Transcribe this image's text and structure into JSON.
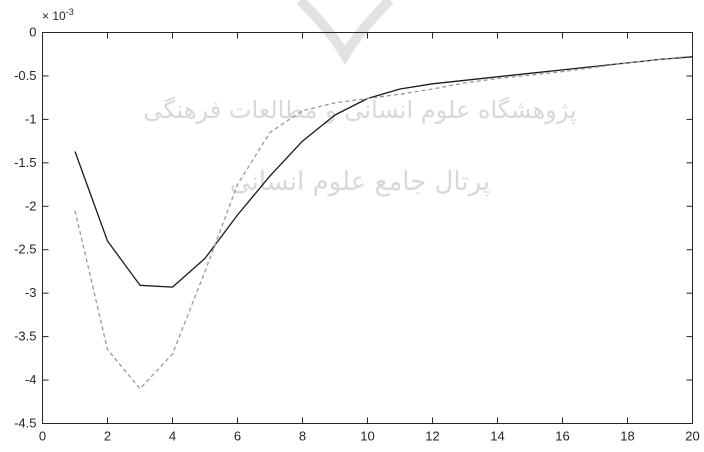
{
  "chart_data": {
    "type": "line",
    "title": "",
    "xlabel": "",
    "ylabel": "",
    "y_exponent_label": "× 10",
    "y_exponent_power": "-3",
    "xlim": [
      0,
      20
    ],
    "ylim": [
      -4.5,
      0
    ],
    "x_ticks": [
      0,
      2,
      4,
      6,
      8,
      10,
      12,
      14,
      16,
      18,
      20
    ],
    "x_tick_labels": [
      "0",
      "2",
      "4",
      "6",
      "8",
      "10",
      "12",
      "14",
      "16",
      "18",
      "20"
    ],
    "y_ticks": [
      0,
      -0.5,
      -1,
      -1.5,
      -2,
      -2.5,
      -3,
      -3.5,
      -4,
      -4.5
    ],
    "y_tick_labels": [
      "0",
      "-0.5",
      "-1",
      "-1.5",
      "-2",
      "-2.5",
      "-3",
      "-3.5",
      "-4",
      "-4.5"
    ],
    "grid": false,
    "legend": "none",
    "x": [
      1,
      2,
      3,
      4,
      5,
      6,
      7,
      8,
      9,
      10,
      11,
      12,
      13,
      14,
      15,
      16,
      17,
      18,
      19,
      20
    ],
    "series": [
      {
        "style": "solid",
        "color": "#1a1a1a",
        "values": [
          -1.37,
          -2.4,
          -2.91,
          -2.93,
          -2.6,
          -2.1,
          -1.65,
          -1.25,
          -0.95,
          -0.76,
          -0.65,
          -0.59,
          -0.55,
          -0.51,
          -0.47,
          -0.43,
          -0.39,
          -0.35,
          -0.31,
          -0.28
        ]
      },
      {
        "style": "dashed",
        "color": "#999999",
        "values": [
          -2.05,
          -3.65,
          -4.1,
          -3.7,
          -2.75,
          -1.75,
          -1.15,
          -0.9,
          -0.81,
          -0.76,
          -0.71,
          -0.65,
          -0.58,
          -0.53,
          -0.49,
          -0.45,
          -0.4,
          -0.35,
          -0.31,
          -0.27
        ]
      }
    ]
  },
  "watermark": {
    "line1": "پژوهشگاه علوم انسانی و مطالعات فرهنگی",
    "line2": "پرتال جامع علوم انسانی"
  }
}
